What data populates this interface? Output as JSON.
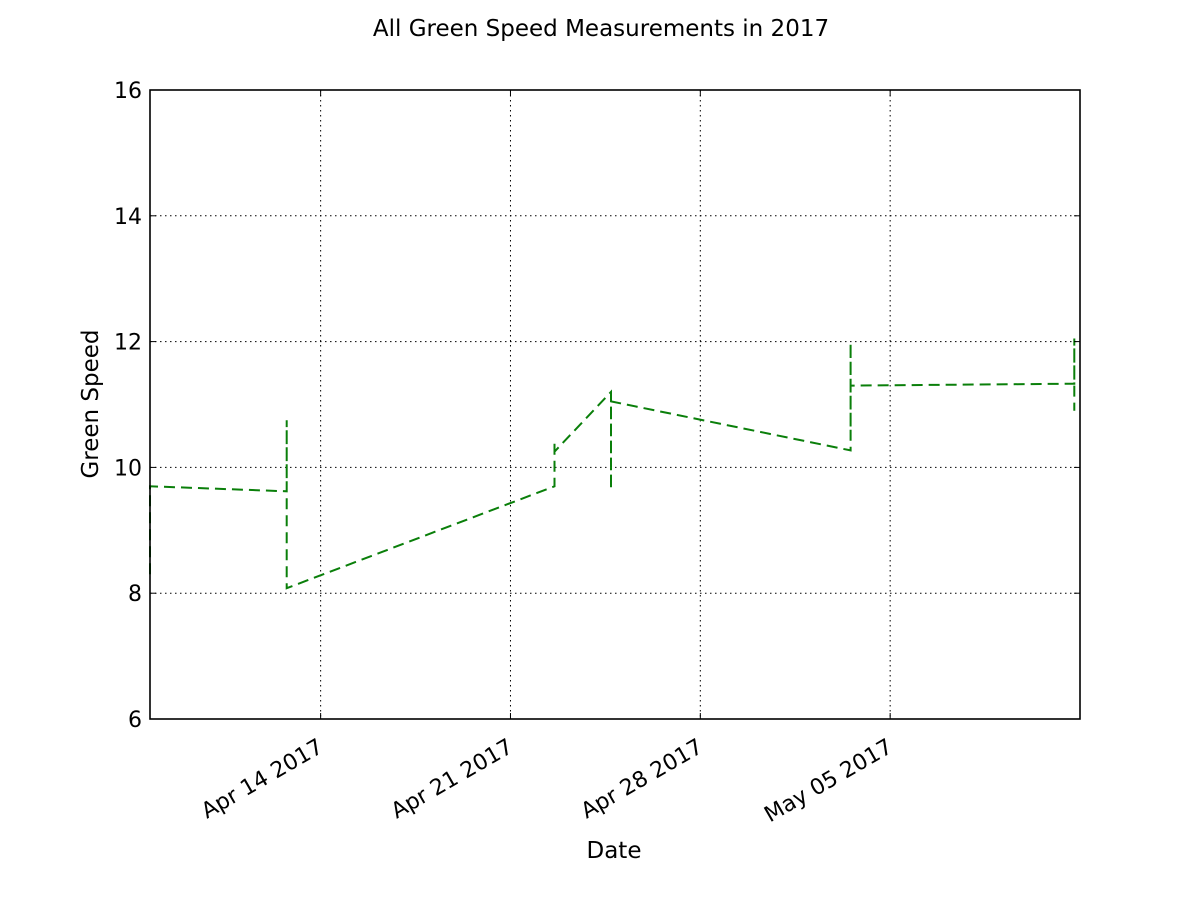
{
  "chart_data": {
    "type": "line",
    "title": "All Green Speed Measurements in 2017",
    "xlabel": "Date",
    "ylabel": "Green Speed",
    "x_axis_type": "date",
    "xlim": [
      "2017-04-07T17:00",
      "2017-05-12T00:00"
    ],
    "ylim": [
      6,
      16
    ],
    "grid": true,
    "xticks": [
      {
        "value": "2017-04-14",
        "label": "Apr 14 2017"
      },
      {
        "value": "2017-04-21",
        "label": "Apr 21 2017"
      },
      {
        "value": "2017-04-28",
        "label": "Apr 28 2017"
      },
      {
        "value": "2017-05-05",
        "label": "May 05 2017"
      }
    ],
    "yticks": [
      6,
      8,
      10,
      12,
      14,
      16
    ],
    "series": [
      {
        "color": "#0a7f0a",
        "line_style": "dashed",
        "points": [
          {
            "x": "2017-04-07T17:00",
            "y": 8.3
          },
          {
            "x": "2017-04-07T17:00",
            "y": 9.7
          },
          {
            "x": "2017-04-12T18:00",
            "y": 9.62
          },
          {
            "x": "2017-04-12T18:00",
            "y": 10.75
          },
          {
            "x": "2017-04-12T18:00",
            "y": 8.08
          },
          {
            "x": "2017-04-22T15:00",
            "y": 9.7
          },
          {
            "x": "2017-04-22T15:00",
            "y": 10.4
          },
          {
            "x": "2017-04-22T15:00",
            "y": 10.25
          },
          {
            "x": "2017-04-24T17:00",
            "y": 11.2
          },
          {
            "x": "2017-04-24T17:00",
            "y": 9.65
          },
          {
            "x": "2017-04-24T17:00",
            "y": 11.05
          },
          {
            "x": "2017-05-03T13:00",
            "y": 10.27
          },
          {
            "x": "2017-05-03T13:00",
            "y": 11.98
          },
          {
            "x": "2017-05-03T13:00",
            "y": 10.47
          },
          {
            "x": "2017-05-03T13:00",
            "y": 11.3
          },
          {
            "x": "2017-05-11T19:00",
            "y": 11.33
          },
          {
            "x": "2017-05-11T19:00",
            "y": 12.05
          },
          {
            "x": "2017-05-11T19:00",
            "y": 10.9
          }
        ]
      }
    ]
  }
}
